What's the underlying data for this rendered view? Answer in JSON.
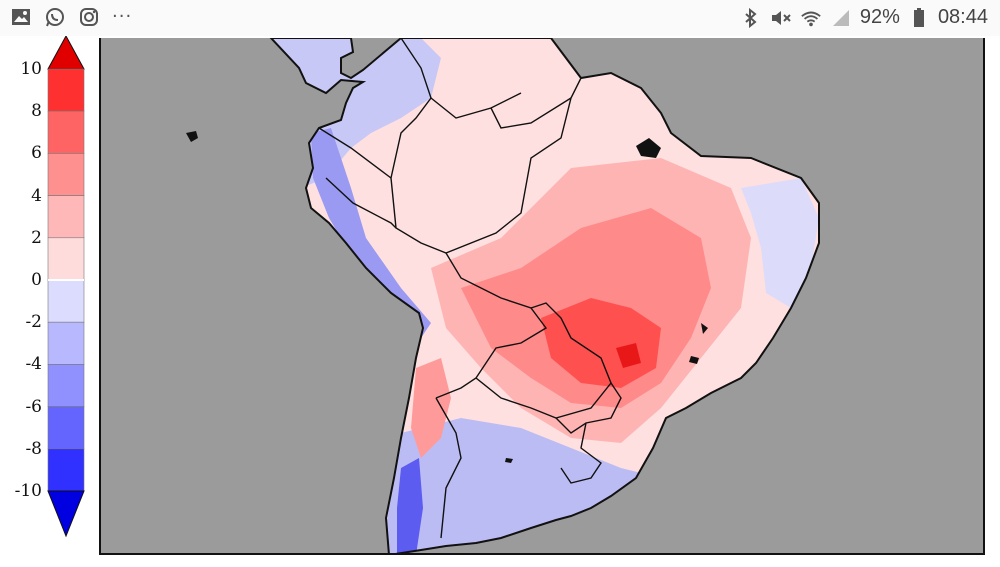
{
  "status_bar": {
    "left_icons": [
      "gallery-icon",
      "whatsapp-icon",
      "instagram-icon"
    ],
    "overflow": "···",
    "right_icons": [
      "bluetooth-icon",
      "mute-icon",
      "wifi-icon",
      "signal-icon",
      "battery-icon"
    ],
    "battery": "92%",
    "time": "08:44"
  },
  "legend": {
    "ticks": [
      "10",
      "8",
      "6",
      "4",
      "2",
      "0",
      "-2",
      "-4",
      "-6",
      "-8",
      "-10"
    ],
    "bin_colors": [
      "#ff3030",
      "#ff6464",
      "#ff9090",
      "#ffb8b8",
      "#ffdcdc",
      "#dcdcff",
      "#b8b8ff",
      "#9090ff",
      "#6464ff",
      "#3030ff"
    ],
    "max_arrow_color": "#e00000",
    "min_arrow_color": "#0000e0"
  },
  "map": {
    "region": "South America",
    "ocean_color": "#9b9b9b",
    "land_positive_color": "#ffd9d9",
    "land_negative_color": "#c8c8f8"
  }
}
